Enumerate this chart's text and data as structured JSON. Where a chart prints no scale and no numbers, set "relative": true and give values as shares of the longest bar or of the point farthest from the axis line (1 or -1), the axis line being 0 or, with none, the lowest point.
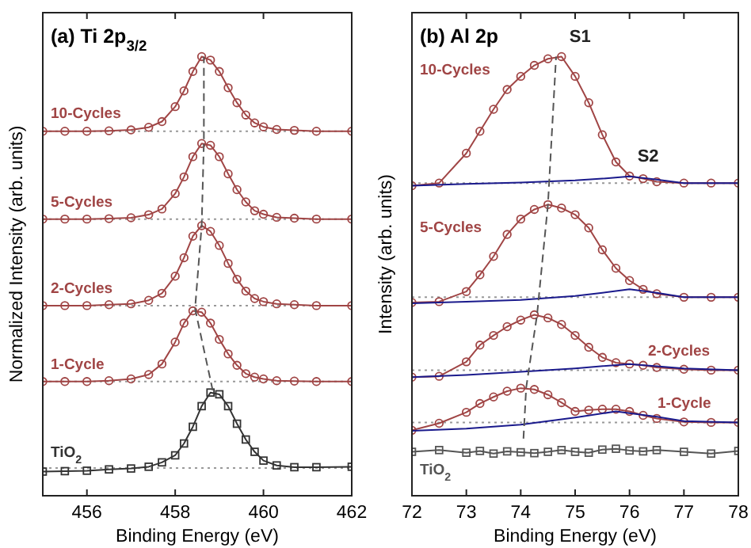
{
  "chart_data": [
    {
      "type": "line",
      "title": "(a) Ti 2p$_{3/2}$",
      "xlabel": "Binding Energy (eV)",
      "ylabel": "Normalized Intensity (arb. units)",
      "relative": true,
      "xlim": [
        455,
        462
      ],
      "xticks": [
        456,
        458,
        460,
        462
      ],
      "x": [
        455,
        455.5,
        456,
        456.5,
        457,
        457.4,
        457.7,
        458,
        458.2,
        458.4,
        458.6,
        458.8,
        459,
        459.2,
        459.4,
        459.6,
        459.8,
        460,
        460.3,
        460.7,
        461.2,
        462
      ],
      "series": [
        {
          "name": "10-Cycles",
          "color": "#a04545",
          "marker": "circle",
          "values": [
            0.83,
            0.83,
            0.83,
            0.831,
            0.833,
            0.839,
            0.852,
            0.886,
            0.922,
            0.966,
            1.0,
            0.992,
            0.966,
            0.929,
            0.895,
            0.867,
            0.849,
            0.84,
            0.834,
            0.832,
            0.83,
            0.83
          ]
        },
        {
          "name": "5-Cycles",
          "color": "#a04545",
          "marker": "circle",
          "values": [
            0.63,
            0.63,
            0.63,
            0.631,
            0.633,
            0.64,
            0.653,
            0.688,
            0.726,
            0.772,
            0.802,
            0.798,
            0.772,
            0.733,
            0.697,
            0.669,
            0.649,
            0.641,
            0.634,
            0.632,
            0.63,
            0.63
          ]
        },
        {
          "name": "2-Cycles",
          "color": "#a04545",
          "marker": "circle",
          "values": [
            0.433,
            0.433,
            0.433,
            0.435,
            0.437,
            0.445,
            0.461,
            0.5,
            0.542,
            0.591,
            0.615,
            0.602,
            0.57,
            0.529,
            0.493,
            0.466,
            0.449,
            0.442,
            0.437,
            0.435,
            0.433,
            0.433
          ]
        },
        {
          "name": "1-Cycle",
          "color": "#a04545",
          "marker": "circle",
          "values": [
            0.26,
            0.26,
            0.26,
            0.262,
            0.266,
            0.276,
            0.3,
            0.35,
            0.393,
            0.421,
            0.418,
            0.393,
            0.356,
            0.323,
            0.297,
            0.278,
            0.27,
            0.266,
            0.262,
            0.261,
            0.26,
            0.26
          ]
        },
        {
          "name": "TiO$_{2}$",
          "color": "#333333",
          "marker": "square",
          "values": [
            0.055,
            0.056,
            0.057,
            0.06,
            0.062,
            0.066,
            0.076,
            0.092,
            0.119,
            0.157,
            0.204,
            0.235,
            0.231,
            0.204,
            0.164,
            0.128,
            0.1,
            0.08,
            0.069,
            0.065,
            0.065,
            0.066
          ]
        },
        {
          "color": "#555555",
          "marker": "none",
          "line_style": "dashed",
          "x": [
            458.85,
            458.45,
            458.6,
            458.65,
            458.65
          ],
          "values": [
            0.24,
            0.426,
            0.615,
            0.807,
            1.0
          ]
        }
      ],
      "ref_lines": [
        {
          "axis": "y",
          "value": 0.83,
          "color": "#999999",
          "line_style": "dotted"
        },
        {
          "axis": "y",
          "value": 0.63,
          "color": "#999999",
          "line_style": "dotted"
        },
        {
          "axis": "y",
          "value": 0.433,
          "color": "#999999",
          "line_style": "dotted"
        },
        {
          "axis": "y",
          "value": 0.26,
          "color": "#999999",
          "line_style": "dotted"
        },
        {
          "axis": "y",
          "value": 0.063,
          "color": "#999999",
          "line_style": "dotted"
        }
      ]
    },
    {
      "type": "line",
      "title": "(b) Al 2p",
      "xlabel": "Binding Energy (eV)",
      "ylabel": "Intensity (arb. units)",
      "relative": true,
      "xlim": [
        72,
        78
      ],
      "xticks": [
        72,
        73,
        74,
        75,
        76,
        77,
        78
      ],
      "x": [
        72,
        72.5,
        73,
        73.25,
        73.5,
        73.75,
        74,
        74.25,
        74.5,
        74.75,
        75,
        75.25,
        75.5,
        75.75,
        76,
        76.25,
        76.5,
        77,
        77.5,
        78
      ],
      "series": [
        {
          "name": "10-Cycles",
          "color": "#a04545",
          "marker": "circle",
          "values": [
            0.706,
            0.712,
            0.78,
            0.83,
            0.88,
            0.925,
            0.955,
            0.98,
            0.995,
            1.0,
            0.955,
            0.895,
            0.822,
            0.76,
            0.728,
            0.722,
            0.715,
            0.712,
            0.712,
            0.712
          ]
        },
        {
          "name": "5-Cycles",
          "color": "#a04545",
          "marker": "circle",
          "values": [
            0.44,
            0.442,
            0.465,
            0.503,
            0.545,
            0.595,
            0.63,
            0.652,
            0.663,
            0.655,
            0.64,
            0.61,
            0.56,
            0.518,
            0.49,
            0.47,
            0.46,
            0.452,
            0.452,
            0.452
          ]
        },
        {
          "name": "2-Cycles",
          "color": "#a04545",
          "marker": "circle",
          "values": [
            0.27,
            0.272,
            0.305,
            0.343,
            0.365,
            0.385,
            0.4,
            0.412,
            0.405,
            0.39,
            0.365,
            0.338,
            0.315,
            0.303,
            0.3,
            0.297,
            0.292,
            0.288,
            0.286,
            0.286
          ]
        },
        {
          "name": "1-Cycle",
          "color": "#a04545",
          "marker": "circle",
          "values": [
            0.149,
            0.165,
            0.19,
            0.21,
            0.225,
            0.238,
            0.245,
            0.242,
            0.23,
            0.212,
            0.192,
            0.195,
            0.197,
            0.197,
            0.192,
            0.183,
            0.176,
            0.168,
            0.167,
            0.167
          ]
        },
        {
          "name": "TiO$_{2}$",
          "color": "#555555",
          "marker": "square",
          "values": [
            0.1,
            0.104,
            0.098,
            0.102,
            0.096,
            0.101,
            0.099,
            0.097,
            0.1,
            0.104,
            0.1,
            0.098,
            0.105,
            0.107,
            0.103,
            0.101,
            0.104,
            0.1,
            0.096,
            0.102
          ]
        },
        {
          "color": "#1a1a8c",
          "marker": "none",
          "x": [
            72,
            73,
            74,
            75,
            75.5,
            76,
            76.5,
            77,
            78
          ],
          "values": [
            0.706,
            0.71,
            0.713,
            0.718,
            0.722,
            0.727,
            0.72,
            0.712,
            0.712
          ]
        },
        {
          "color": "#1a1a8c",
          "marker": "none",
          "x": [
            72,
            73,
            74,
            75,
            75.5,
            76,
            76.5,
            77,
            78
          ],
          "values": [
            0.438,
            0.442,
            0.446,
            0.455,
            0.462,
            0.47,
            0.462,
            0.452,
            0.452
          ]
        },
        {
          "color": "#1a1a8c",
          "marker": "none",
          "x": [
            72,
            73,
            74,
            75,
            76,
            76.5,
            77,
            78
          ],
          "values": [
            0.27,
            0.275,
            0.282,
            0.29,
            0.3,
            0.295,
            0.29,
            0.286
          ]
        },
        {
          "color": "#1a1a8c",
          "marker": "none",
          "x": [
            72,
            73,
            74,
            75,
            75.75,
            76.5,
            77,
            78
          ],
          "values": [
            0.148,
            0.153,
            0.162,
            0.178,
            0.192,
            0.18,
            0.17,
            0.167
          ]
        },
        {
          "color": "#555555",
          "marker": "none",
          "line_style": "dashed",
          "x": [
            74.05,
            74.1,
            74.3,
            74.5,
            74.65
          ],
          "values": [
            0.13,
            0.246,
            0.412,
            0.663,
            1.0
          ]
        }
      ],
      "ref_lines": [
        {
          "axis": "y",
          "value": 0.712,
          "color": "#999999",
          "line_style": "dotted"
        },
        {
          "axis": "y",
          "value": 0.452,
          "color": "#999999",
          "line_style": "dotted"
        },
        {
          "axis": "y",
          "value": 0.286,
          "color": "#999999",
          "line_style": "dotted"
        },
        {
          "axis": "y",
          "value": 0.167,
          "color": "#999999",
          "line_style": "dotted"
        }
      ],
      "annotations": [
        {
          "text": "S1",
          "x": 74.75,
          "y": 1.0
        },
        {
          "text": "S2",
          "x": 76.0,
          "y": 0.728
        }
      ]
    }
  ]
}
